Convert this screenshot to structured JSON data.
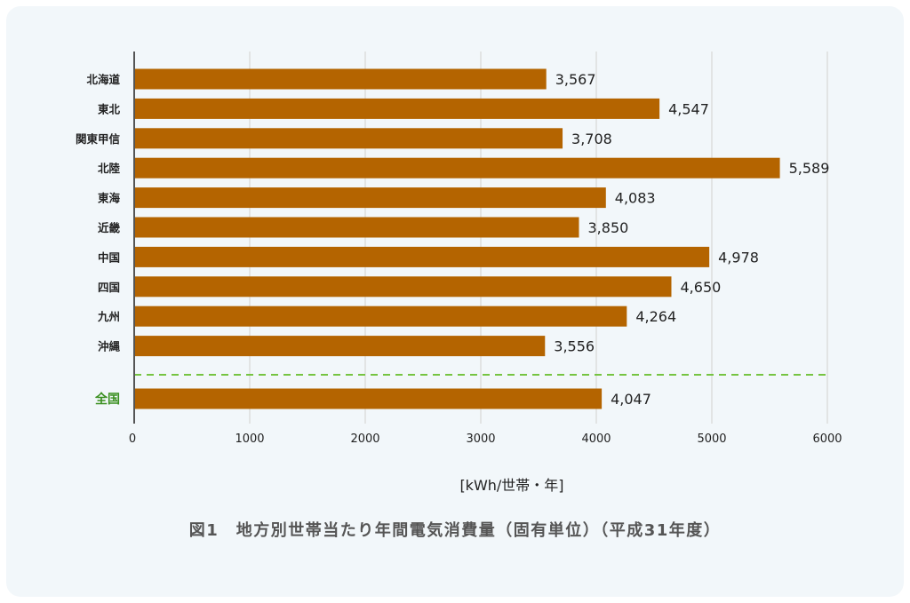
{
  "chart_data": {
    "type": "bar",
    "orientation": "horizontal",
    "categories": [
      "北海道",
      "東北",
      "関東甲信",
      "北陸",
      "東海",
      "近畿",
      "中国",
      "四国",
      "九州",
      "沖縄"
    ],
    "values": [
      3567,
      4547,
      3708,
      5589,
      4083,
      3850,
      4978,
      4650,
      4264,
      3556
    ],
    "value_labels": [
      "3,567",
      "4,547",
      "3,708",
      "5,589",
      "4,083",
      "3,850",
      "4,978",
      "4,650",
      "4,264",
      "3,556"
    ],
    "total": {
      "category": "全国",
      "value": 4047,
      "value_label": "4,047"
    },
    "xlim": [
      0,
      6000
    ],
    "xticks": [
      "0",
      "1000",
      "2000",
      "3000",
      "4000",
      "5000",
      "6000"
    ],
    "xlabel": "[kWh/世帯・年]",
    "title": "図1　地方別世帯当たり年間電気消費量（固有単位）（平成31年度）",
    "grid": true,
    "colors": {
      "bar": "#b46400",
      "total_label": "#3a8f1f",
      "separator": "#76c442",
      "grid": "#dddddd",
      "axis": "#555555"
    }
  }
}
